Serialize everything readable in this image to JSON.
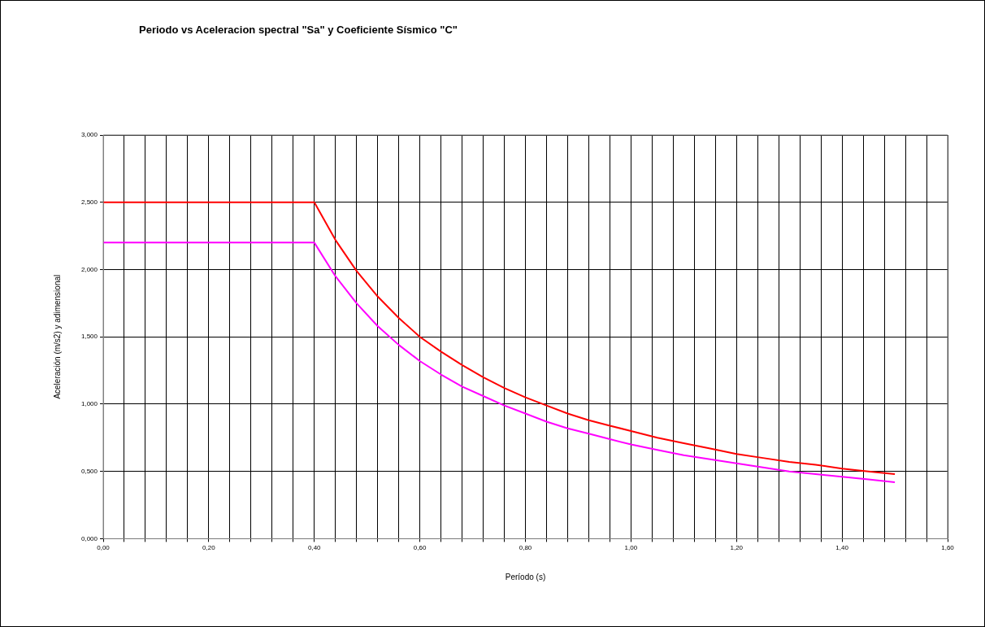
{
  "chart_data": {
    "type": "line",
    "title": "Periodo vs Aceleracion spectral \"Sa\" y Coeficiente Sísmico \"C\"",
    "xlabel": "Período (s)",
    "ylabel": "Aceleración (m/s2) y adimensional",
    "x": [
      0,
      0.4,
      0.44,
      0.48,
      0.52,
      0.56,
      0.6,
      0.64,
      0.68,
      0.72,
      0.76,
      0.8,
      0.84,
      0.88,
      0.92,
      0.96,
      1.0,
      1.05,
      1.1,
      1.15,
      1.2,
      1.25,
      1.3,
      1.35,
      1.4,
      1.45,
      1.5
    ],
    "series": [
      {
        "color": "#ff0000",
        "values": [
          2.5,
          2.5,
          2.22,
          1.99,
          1.8,
          1.64,
          1.5,
          1.39,
          1.29,
          1.2,
          1.12,
          1.05,
          0.99,
          0.93,
          0.88,
          0.84,
          0.8,
          0.75,
          0.71,
          0.67,
          0.63,
          0.6,
          0.57,
          0.55,
          0.52,
          0.5,
          0.48
        ]
      },
      {
        "color": "#ff00ff",
        "values": [
          2.2,
          2.2,
          1.95,
          1.75,
          1.58,
          1.44,
          1.32,
          1.22,
          1.13,
          1.06,
          0.99,
          0.93,
          0.87,
          0.82,
          0.78,
          0.74,
          0.7,
          0.66,
          0.62,
          0.59,
          0.56,
          0.53,
          0.5,
          0.48,
          0.46,
          0.44,
          0.42
        ]
      }
    ],
    "xlim": [
      0,
      1.6
    ],
    "xticks": [
      {
        "value": 0,
        "label": "0,00"
      },
      {
        "value": 0.04,
        "label": null
      },
      {
        "value": 0.08,
        "label": null
      },
      {
        "value": 0.12,
        "label": null
      },
      {
        "value": 0.16,
        "label": null
      },
      {
        "value": 0.2,
        "label": "0,20"
      },
      {
        "value": 0.24,
        "label": null
      },
      {
        "value": 0.28,
        "label": null
      },
      {
        "value": 0.32,
        "label": null
      },
      {
        "value": 0.36,
        "label": null
      },
      {
        "value": 0.4,
        "label": "0,40"
      },
      {
        "value": 0.44,
        "label": null
      },
      {
        "value": 0.48,
        "label": null
      },
      {
        "value": 0.52,
        "label": null
      },
      {
        "value": 0.56,
        "label": null
      },
      {
        "value": 0.6,
        "label": "0,60"
      },
      {
        "value": 0.64,
        "label": null
      },
      {
        "value": 0.68,
        "label": null
      },
      {
        "value": 0.72,
        "label": null
      },
      {
        "value": 0.76,
        "label": null
      },
      {
        "value": 0.8,
        "label": "0,80"
      },
      {
        "value": 0.84,
        "label": null
      },
      {
        "value": 0.88,
        "label": null
      },
      {
        "value": 0.92,
        "label": null
      },
      {
        "value": 0.96,
        "label": null
      },
      {
        "value": 1.0,
        "label": "1,00"
      },
      {
        "value": 1.04,
        "label": null
      },
      {
        "value": 1.08,
        "label": null
      },
      {
        "value": 1.12,
        "label": null
      },
      {
        "value": 1.16,
        "label": null
      },
      {
        "value": 1.2,
        "label": "1,20"
      },
      {
        "value": 1.24,
        "label": null
      },
      {
        "value": 1.28,
        "label": null
      },
      {
        "value": 1.32,
        "label": null
      },
      {
        "value": 1.36,
        "label": null
      },
      {
        "value": 1.4,
        "label": "1,40"
      },
      {
        "value": 1.44,
        "label": null
      },
      {
        "value": 1.48,
        "label": null
      },
      {
        "value": 1.52,
        "label": null
      },
      {
        "value": 1.56,
        "label": null
      },
      {
        "value": 1.6,
        "label": "1,60"
      }
    ],
    "ylim": [
      0,
      3
    ],
    "yticks": [
      {
        "value": 0,
        "label": "0,000"
      },
      {
        "value": 0.5,
        "label": "0,500"
      },
      {
        "value": 1.0,
        "label": "1,000"
      },
      {
        "value": 1.5,
        "label": "1,500"
      },
      {
        "value": 2.0,
        "label": "2,000"
      },
      {
        "value": 2.5,
        "label": "2,500"
      },
      {
        "value": 3.0,
        "label": "3,000"
      }
    ],
    "grid": true,
    "legend": false,
    "marker": "none",
    "line_style": "solid"
  }
}
